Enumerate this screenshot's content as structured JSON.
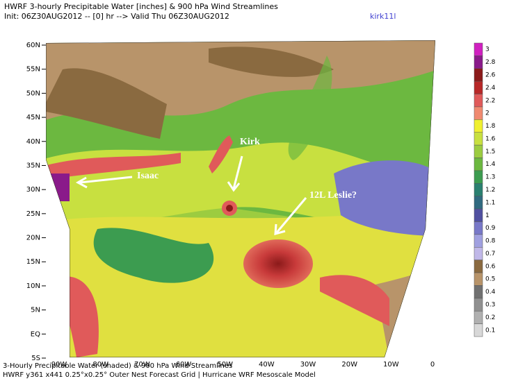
{
  "header": {
    "title": "HWRF 3-hourly Precipitable Water [inches] & 900 hPa Wind Streamlines",
    "subtitle": "Init: 06Z30AUG2012 -- [0] hr --> Valid Thu 06Z30AUG2012",
    "tag": "kirk11l"
  },
  "map": {
    "lat_labels": [
      "60N",
      "55N",
      "50N",
      "45N",
      "40N",
      "35N",
      "30N",
      "25N",
      "20N",
      "15N",
      "10N",
      "5N",
      "EQ",
      "5S"
    ],
    "lon_labels": [
      "90W",
      "80W",
      "70W",
      "60W",
      "50W",
      "40W",
      "30W",
      "20W",
      "10W",
      "0"
    ],
    "annotations": [
      "Kirk",
      "Isaac",
      "12L Leslie?"
    ]
  },
  "colorbar": {
    "ticks": [
      3,
      2.8,
      2.6,
      2.4,
      2.2,
      2,
      1.8,
      1.6,
      1.5,
      1.4,
      1.3,
      1.2,
      1.1,
      1,
      0.9,
      0.8,
      0.7,
      0.6,
      0.5,
      0.4,
      0.3,
      0.2,
      0.1
    ],
    "colors": [
      "#d020c0",
      "#8a1a8a",
      "#8b1a1a",
      "#b82828",
      "#e05a5a",
      "#f08a70",
      "#f0f030",
      "#c8e040",
      "#9ccc40",
      "#6cb840",
      "#3c9c50",
      "#2a8070",
      "#306a80",
      "#5050a0",
      "#7878c8",
      "#a0a0e0",
      "#c0b8e8",
      "#8a6a40",
      "#b8946a",
      "#707070",
      "#909090",
      "#b0b0b0",
      "#d8d8d8"
    ]
  },
  "footer": {
    "line1": "3-Hourly Precipitable Water (shaded) & 900 hPa Wind Streamlines",
    "line2": "HWRF y361 x441 0.25°x0.25° Outer Nest Forecast Grid | Hurricane WRF Mesoscale Model"
  }
}
